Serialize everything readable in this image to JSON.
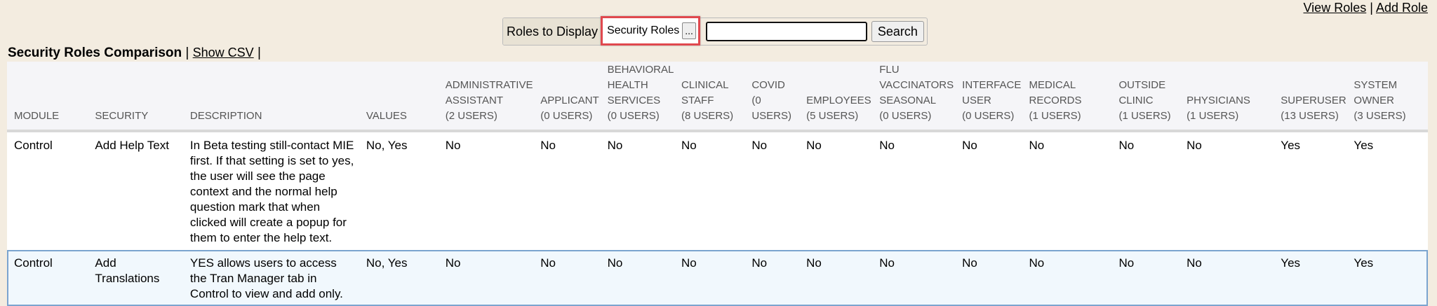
{
  "top_links": {
    "view_roles": "View Roles",
    "separator": "|",
    "add_role": "Add Role"
  },
  "toolbar": {
    "roles_label": "Roles to Display",
    "roles_value": "Security Roles",
    "roles_more": "...",
    "search_value": "",
    "search_button": "Search"
  },
  "heading": {
    "title": "Security Roles Comparison",
    "sep1": "|",
    "show_csv": "Show CSV",
    "sep2": "|"
  },
  "columns": [
    [
      "MODULE"
    ],
    [
      "SECURITY"
    ],
    [
      "DESCRIPTION"
    ],
    [
      "VALUES"
    ],
    [
      "ADMINISTRATIVE",
      "ASSISTANT",
      "(2 USERS)"
    ],
    [
      "APPLICANT",
      "(0 USERS)"
    ],
    [
      "BEHAVIORAL",
      "HEALTH",
      "SERVICES",
      "(0 USERS)"
    ],
    [
      "CLINICAL",
      "STAFF",
      "(8 USERS)"
    ],
    [
      "COVID",
      "(0",
      "USERS)"
    ],
    [
      "EMPLOYEES",
      "(5 USERS)"
    ],
    [
      "FLU",
      "VACCINATORS",
      "SEASONAL",
      "(0 USERS)"
    ],
    [
      "INTERFACE",
      "USER",
      "(0 USERS)"
    ],
    [
      "MEDICAL",
      "RECORDS",
      "(1 USERS)"
    ],
    [
      "OUTSIDE",
      "CLINIC",
      "(1 USERS)"
    ],
    [
      "PHYSICIANS",
      "(1 USERS)"
    ],
    [
      "SUPERUSER",
      "(13 USERS)"
    ],
    [
      "SYSTEM",
      "OWNER",
      "(3 USERS)"
    ]
  ],
  "rows": [
    [
      "Control",
      "Add Help Text",
      "In Beta testing still-contact MIE first. If that setting is set to yes, the user will see the page context and the normal help question mark that when clicked will create a popup for them to enter the help text.",
      "No, Yes",
      "No",
      "No",
      "No",
      "No",
      "No",
      "No",
      "No",
      "No",
      "No",
      "No",
      "No",
      "Yes",
      "Yes"
    ],
    [
      "Control",
      "Add Translations",
      "YES allows users to access the Tran Manager tab in Control to view and add only.",
      "No, Yes",
      "No",
      "No",
      "No",
      "No",
      "No",
      "No",
      "No",
      "No",
      "No",
      "No",
      "No",
      "Yes",
      "Yes"
    ]
  ],
  "colors": {
    "background": "#f3ece0",
    "highlight_border": "#e0484e",
    "hover_row": "#f1f8fd"
  }
}
